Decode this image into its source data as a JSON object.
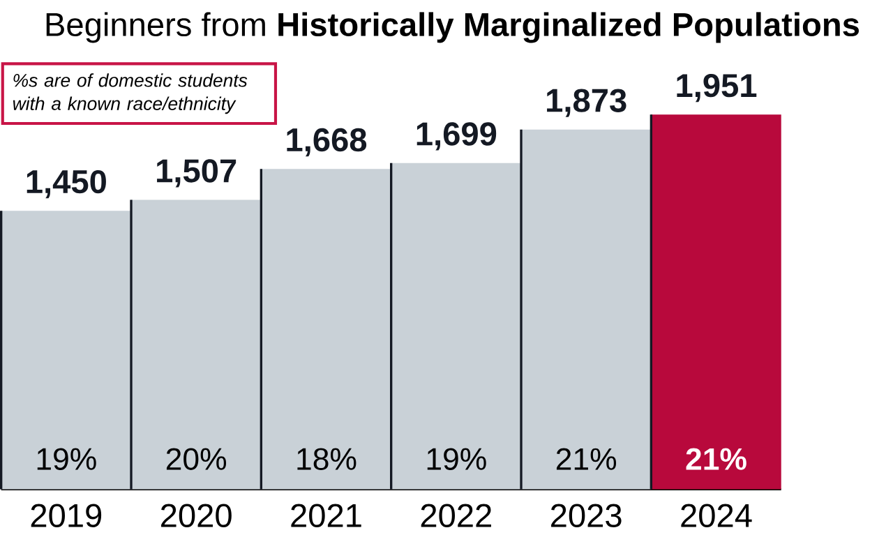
{
  "chart_data": {
    "type": "bar",
    "title": "Beginners from **Historically Marginalized Populations**",
    "categories": [
      "2019",
      "2020",
      "2021",
      "2022",
      "2023",
      "2024"
    ],
    "values": [
      1450,
      1507,
      1668,
      1699,
      1873,
      1951
    ],
    "value_labels": [
      "1,450",
      "1,507",
      "1,668",
      "1,699",
      "1,873",
      "1,951"
    ],
    "colors": [
      "#c9d1d7",
      "#c9d1d7",
      "#c9d1d7",
      "#c9d1d7",
      "#c9d1d7",
      "#b8093c"
    ],
    "annotations": [
      "%s are of domestic students with a known race/ethnicity",
      "19%",
      "20%",
      "18%",
      "19%",
      "21%",
      "21%"
    ]
  }
}
